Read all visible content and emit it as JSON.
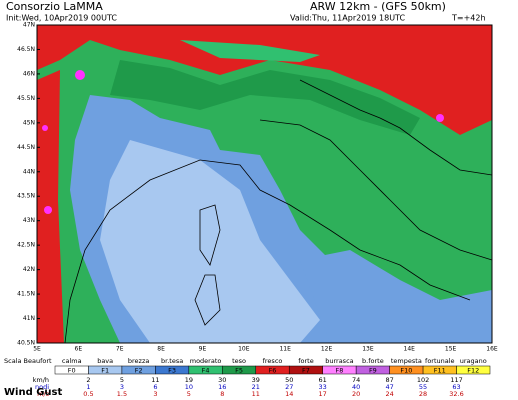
{
  "header": {
    "producer": "Consorzio LaMMA",
    "model": "ARW 12km - (GFS 50km)",
    "init": "Init:Wed, 10Apr2019 00UTC",
    "valid": "Valid:Thu, 11Apr2019 18UTC",
    "step": "T=+42h"
  },
  "map": {
    "lat_labels": [
      "47N",
      "46.5N",
      "46N",
      "45.5N",
      "45N",
      "44.5N",
      "44N",
      "43.5N",
      "43N",
      "42.5N",
      "42N",
      "41.5N",
      "41N",
      "40.5N"
    ],
    "lon_labels": [
      "5E",
      "6E",
      "7E",
      "8E",
      "9E",
      "10E",
      "11E",
      "12E",
      "13E",
      "14E",
      "15E",
      "16E"
    ]
  },
  "legend": {
    "title": "Scala Beaufort",
    "names": [
      "calma",
      "bava",
      "brezza",
      "br.tesa",
      "moderato",
      "teso",
      "fresco",
      "forte",
      "burrasca",
      "b.forte",
      "tempesta",
      "fortunale",
      "uragano"
    ],
    "classes": [
      "F0",
      "F1",
      "F2",
      "F3",
      "F4",
      "F5",
      "F6",
      "F7",
      "F8",
      "F9",
      "F10",
      "F11",
      "F12"
    ],
    "kmh_label": "km/h",
    "kmh": [
      "2",
      "5",
      "11",
      "19",
      "30",
      "39",
      "50",
      "61",
      "74",
      "87",
      "102",
      "117"
    ],
    "knots_label": "nodi",
    "knots": [
      "1",
      "3",
      "6",
      "10",
      "16",
      "21",
      "27",
      "33",
      "40",
      "47",
      "55",
      "63"
    ],
    "ms_label": "m/s",
    "ms": [
      "0.5",
      "1.5",
      "3",
      "5",
      "8",
      "11",
      "14",
      "17",
      "20",
      "24",
      "28",
      "32.6"
    ],
    "field": "Wind Gust"
  }
}
